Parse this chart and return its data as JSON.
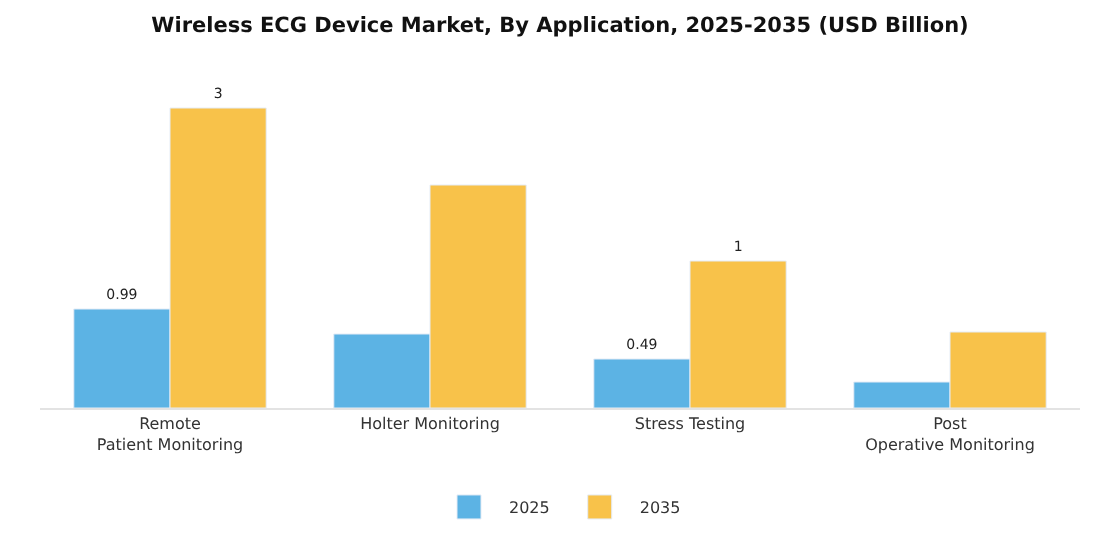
{
  "chart_data": {
    "type": "bar",
    "title": "Wireless ECG Device Market, By Application, 2025-2035 (USD Billion)",
    "categories": [
      "Remote Patient Monitoring",
      "Holter Monitoring",
      "Stress Testing",
      "Post Operative Monitoring"
    ],
    "series": [
      {
        "name": "2025",
        "color": "#5cb3e4",
        "values": [
          0.99,
          0.74,
          0.49,
          0.26
        ],
        "value_labels": [
          "0.99",
          null,
          "0.49",
          null
        ]
      },
      {
        "name": "2035",
        "color": "#f8c24a",
        "values": [
          3,
          2.23,
          1.47,
          0.76
        ],
        "value_labels": [
          "3",
          null,
          "1",
          null
        ]
      }
    ],
    "legend": "bottom"
  }
}
